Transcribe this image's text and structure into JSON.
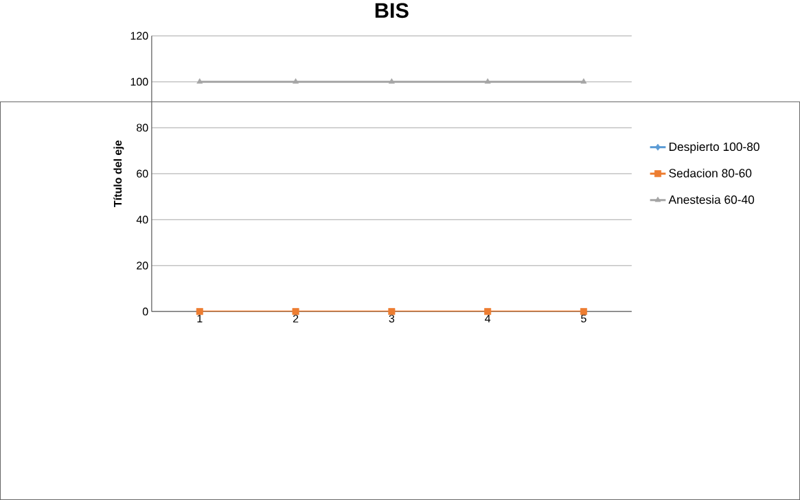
{
  "chart_data": {
    "type": "line",
    "title": "BIS",
    "ylabel": "Título del eje",
    "categories": [
      "1",
      "2",
      "3",
      "4",
      "5"
    ],
    "series": [
      {
        "name": "Despierto 100-80",
        "color": "#5b9bd5",
        "marker": "diamond",
        "values": [
          null,
          null,
          null,
          null,
          null
        ]
      },
      {
        "name": "Sedacion 80-60",
        "color": "#ed7d31",
        "marker": "square",
        "values": [
          0,
          0,
          0,
          0,
          0
        ]
      },
      {
        "name": "Anestesia 60-40",
        "color": "#a5a5a5",
        "marker": "triangle",
        "values": [
          100,
          100,
          100,
          100,
          100
        ]
      }
    ],
    "ylim": [
      0,
      120
    ],
    "yticks": [
      0,
      20,
      40,
      60,
      80,
      100,
      120
    ],
    "grid": "y",
    "legend": "right"
  }
}
